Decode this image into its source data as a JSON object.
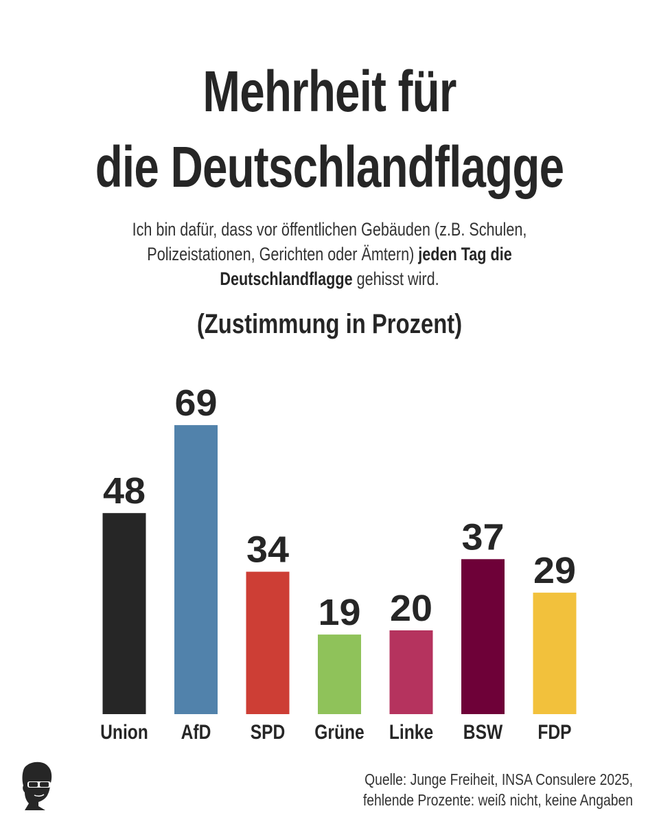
{
  "header": {
    "title_line1": "Mehrheit für",
    "title_line2": "die Deutschlandflagge",
    "question_part1": "Ich bin dafür, dass vor öffentlichen Gebäuden (z.B. Schulen, Polizeistationen, Gerichten oder Ämtern) ",
    "question_bold": "jeden Tag die Deutschlandflagge",
    "question_part2": " gehisst wird.",
    "unit_label": "(Zustimmung in Prozent)"
  },
  "chart_data": {
    "type": "bar",
    "categories": [
      "Union",
      "AfD",
      "SPD",
      "Grüne",
      "Linke",
      "BSW",
      "FDP"
    ],
    "values": [
      48,
      69,
      34,
      19,
      20,
      37,
      29
    ],
    "colors": [
      "#262626",
      "#5182ab",
      "#cd3e35",
      "#8fc25a",
      "#b5335e",
      "#6e0138",
      "#f2c13c"
    ],
    "ylim": [
      0,
      100
    ],
    "grid": false,
    "legend": "none",
    "data_labels": true
  },
  "footer": {
    "source_line1": "Quelle: Junge Freiheit,  INSA Consulere 2025,",
    "source_line2": "fehlende Prozente: weiß nicht, keine Angaben",
    "logo_icon": "silhouette-head-sunglasses-icon"
  }
}
